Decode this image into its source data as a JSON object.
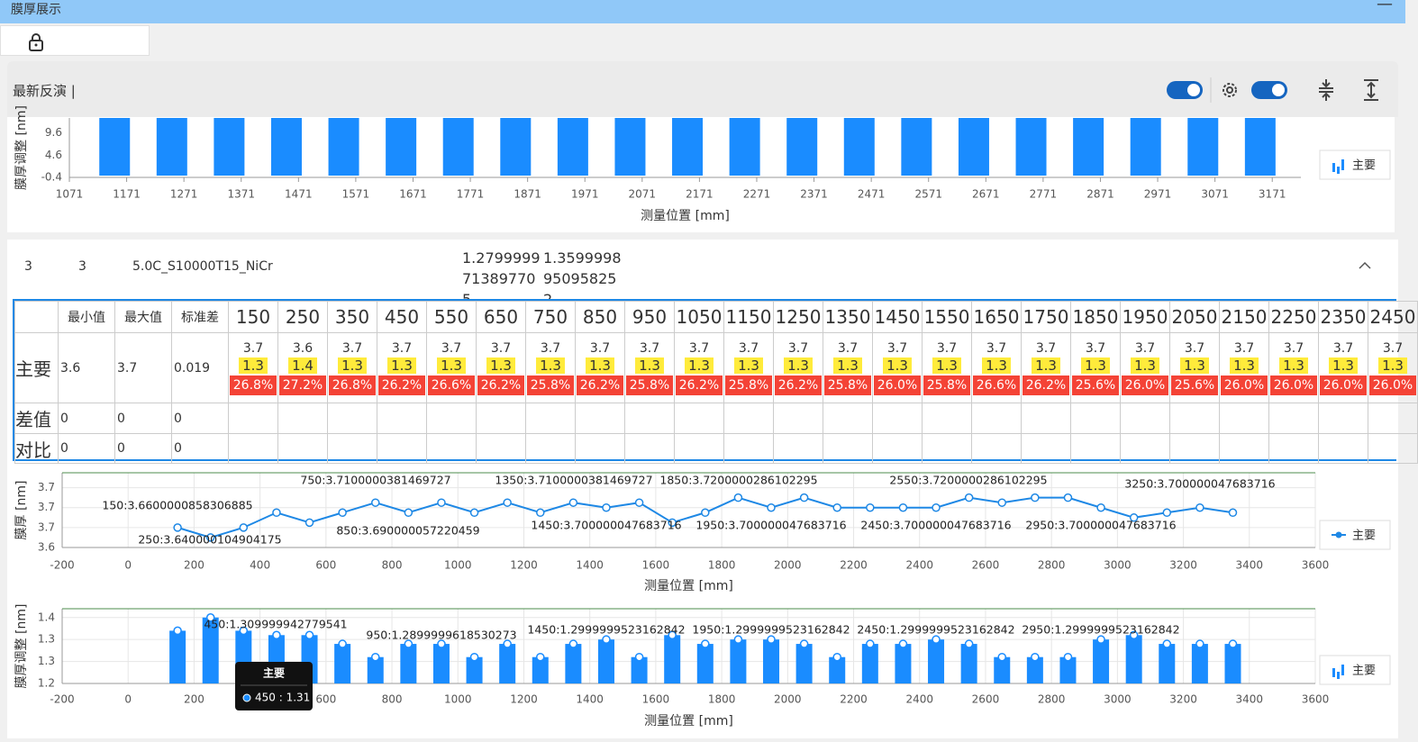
{
  "window": {
    "title": "膜厚展示"
  },
  "toolbar": {
    "label": "最新反演 |"
  },
  "record": {
    "cols": [
      "3",
      "3",
      "5.0C_S10000T15_NiCr",
      "1.2799999713897705",
      "1.3599998950958252"
    ]
  },
  "table": {
    "header": [
      "最小值",
      "最大值",
      "标准差"
    ],
    "positions": [
      150,
      250,
      350,
      450,
      550,
      650,
      750,
      850,
      950,
      1050,
      1150,
      1250,
      1350,
      1450,
      1550,
      1650,
      1750,
      1850,
      1950,
      2050,
      2150,
      2250,
      2350,
      2450
    ],
    "rows": [
      {
        "label": "主要",
        "stats": [
          3.6,
          3.7,
          0.019
        ],
        "cells": [
          {
            "value": 3.7,
            "adjust": 1.3,
            "ratio": "26.8%"
          },
          {
            "value": 3.6,
            "adjust": 1.4,
            "ratio": "27.2%"
          },
          {
            "value": 3.7,
            "adjust": 1.3,
            "ratio": "26.8%"
          },
          {
            "value": 3.7,
            "adjust": 1.3,
            "ratio": "26.2%"
          },
          {
            "value": 3.7,
            "adjust": 1.3,
            "ratio": "26.6%"
          },
          {
            "value": 3.7,
            "adjust": 1.3,
            "ratio": "26.2%"
          },
          {
            "value": 3.7,
            "adjust": 1.3,
            "ratio": "25.8%"
          },
          {
            "value": 3.7,
            "adjust": 1.3,
            "ratio": "26.2%"
          },
          {
            "value": 3.7,
            "adjust": 1.3,
            "ratio": "25.8%"
          },
          {
            "value": 3.7,
            "adjust": 1.3,
            "ratio": "26.2%"
          },
          {
            "value": 3.7,
            "adjust": 1.3,
            "ratio": "25.8%"
          },
          {
            "value": 3.7,
            "adjust": 1.3,
            "ratio": "26.2%"
          },
          {
            "value": 3.7,
            "adjust": 1.3,
            "ratio": "25.8%"
          },
          {
            "value": 3.7,
            "adjust": 1.3,
            "ratio": "26.0%"
          },
          {
            "value": 3.7,
            "adjust": 1.3,
            "ratio": "25.8%"
          },
          {
            "value": 3.7,
            "adjust": 1.3,
            "ratio": "26.6%"
          },
          {
            "value": 3.7,
            "adjust": 1.3,
            "ratio": "26.2%"
          },
          {
            "value": 3.7,
            "adjust": 1.3,
            "ratio": "25.6%"
          },
          {
            "value": 3.7,
            "adjust": 1.3,
            "ratio": "26.0%"
          },
          {
            "value": 3.7,
            "adjust": 1.3,
            "ratio": "25.6%"
          },
          {
            "value": 3.7,
            "adjust": 1.3,
            "ratio": "26.0%"
          },
          {
            "value": 3.7,
            "adjust": 1.3,
            "ratio": "26.0%"
          },
          {
            "value": 3.7,
            "adjust": 1.3,
            "ratio": "26.0%"
          },
          {
            "value": 3.7,
            "adjust": 1.3,
            "ratio": "26.0%"
          }
        ]
      },
      {
        "label": "差值",
        "stats": [
          0,
          0,
          0
        ]
      },
      {
        "label": "对比",
        "stats": [
          0,
          0,
          0
        ]
      }
    ]
  },
  "chart_data": [
    {
      "type": "bar",
      "ylabel": "膜厚调整 [nm]",
      "xlabel": "测量位置 [mm]",
      "x": [
        1150,
        1250,
        1350,
        1450,
        1550,
        1650,
        1750,
        1850,
        1950,
        2050,
        2150,
        2250,
        2350,
        2450,
        2550,
        2650,
        2750,
        2850,
        2950,
        3050,
        3150
      ],
      "series": [
        {
          "name": "主要",
          "color": "#1a8cff",
          "values": [
            13,
            13,
            13,
            13,
            13,
            13,
            13,
            13,
            13,
            13,
            13,
            13,
            13,
            13,
            13,
            13,
            13,
            13,
            13,
            13,
            13
          ]
        }
      ],
      "xlim": [
        1071,
        3221
      ],
      "xticks": [
        1071,
        1171,
        1271,
        1371,
        1471,
        1571,
        1671,
        1771,
        1871,
        1971,
        2071,
        2171,
        2271,
        2371,
        2471,
        2571,
        2671,
        2771,
        2871,
        2971,
        3071,
        3171
      ],
      "ylim": [
        -0.4,
        13
      ],
      "yticks": [
        -0.4,
        4.6,
        9.6
      ],
      "grid": false
    },
    {
      "type": "line",
      "ylabel": "膜厚 [nm]",
      "xlabel": "测量位置 [mm]",
      "x": [
        150,
        250,
        350,
        450,
        550,
        650,
        750,
        850,
        950,
        1050,
        1150,
        1250,
        1350,
        1450,
        1550,
        1650,
        1750,
        1850,
        1950,
        2050,
        2150,
        2250,
        2350,
        2450,
        2550,
        2650,
        2750,
        2850,
        2950,
        3050,
        3150,
        3250,
        3350
      ],
      "series": [
        {
          "name": "主要",
          "color": "#1e88e5",
          "values": [
            3.66,
            3.64,
            3.66,
            3.69,
            3.67,
            3.69,
            3.71,
            3.69,
            3.71,
            3.69,
            3.71,
            3.69,
            3.71,
            3.7,
            3.71,
            3.67,
            3.69,
            3.72,
            3.7,
            3.72,
            3.7,
            3.7,
            3.7,
            3.7,
            3.72,
            3.71,
            3.72,
            3.72,
            3.7,
            3.68,
            3.69,
            3.7,
            3.69
          ]
        }
      ],
      "xlim": [
        -200,
        3600
      ],
      "xticks": [
        -200,
        0,
        200,
        400,
        600,
        800,
        1000,
        1200,
        1400,
        1600,
        1800,
        2000,
        2200,
        2400,
        2600,
        2800,
        3000,
        3200,
        3400,
        3600
      ],
      "ylim": [
        3.62,
        3.77
      ],
      "yticks": [
        {
          "value": 3.62,
          "label": "3.6"
        },
        {
          "value": 3.66,
          "label": "3.7"
        },
        {
          "value": 3.7,
          "label": "3.7"
        },
        {
          "value": 3.74,
          "label": "3.7"
        }
      ],
      "grid": true,
      "annotations": [
        "750:3.7100000381469727",
        "150:3.6600000858306885",
        "250:3.640000104904175",
        "850:3.690000057220459",
        "1350:3.7100000381469727",
        "1450:3.700000047683716",
        "1850:3.7200000286102295",
        "1950:3.700000047683716",
        "2550:3.7200000286102295",
        "2450:3.700000047683716",
        "2950:3.700000047683716",
        "3250:3.700000047683716"
      ]
    },
    {
      "type": "bar",
      "ylabel": "膜厚调整 [nm]",
      "xlabel": "测量位置 [mm]",
      "x": [
        150,
        250,
        350,
        450,
        550,
        650,
        750,
        850,
        950,
        1050,
        1150,
        1250,
        1350,
        1450,
        1550,
        1650,
        1750,
        1850,
        1950,
        2050,
        2150,
        2250,
        2350,
        2450,
        2550,
        2650,
        2750,
        2850,
        2950,
        3050,
        3150,
        3250,
        3350
      ],
      "series": [
        {
          "name": "主要",
          "color": "#1a8cff",
          "values": [
            1.32,
            1.35,
            1.32,
            1.31,
            1.31,
            1.29,
            1.26,
            1.29,
            1.29,
            1.26,
            1.29,
            1.26,
            1.29,
            1.3,
            1.26,
            1.31,
            1.29,
            1.3,
            1.3,
            1.29,
            1.26,
            1.29,
            1.29,
            1.3,
            1.29,
            1.26,
            1.26,
            1.26,
            1.3,
            1.31,
            1.29,
            1.29,
            1.29
          ]
        }
      ],
      "xlim": [
        -200,
        3600
      ],
      "xticks": [
        -200,
        0,
        200,
        400,
        600,
        800,
        1000,
        1200,
        1400,
        1600,
        1800,
        2000,
        2200,
        2400,
        2600,
        2800,
        3000,
        3200,
        3400,
        3600
      ],
      "ylim": [
        1.2,
        1.37
      ],
      "yticks": [
        1.2,
        {
          "value": 1.25,
          "label": "1.3"
        },
        1.3,
        {
          "value": 1.35,
          "label": "1.4"
        }
      ],
      "grid": true,
      "markers": true,
      "annotations": [
        "450:1.309999942779541",
        "950:1.2899999618530273",
        "1450:1.2999999523162842",
        "1950:1.2999999523162842",
        "2450:1.2999999523162842",
        "2950:1.2999999523162842"
      ],
      "tooltip": {
        "title": "主要",
        "text": "450 : 1.31"
      }
    }
  ]
}
